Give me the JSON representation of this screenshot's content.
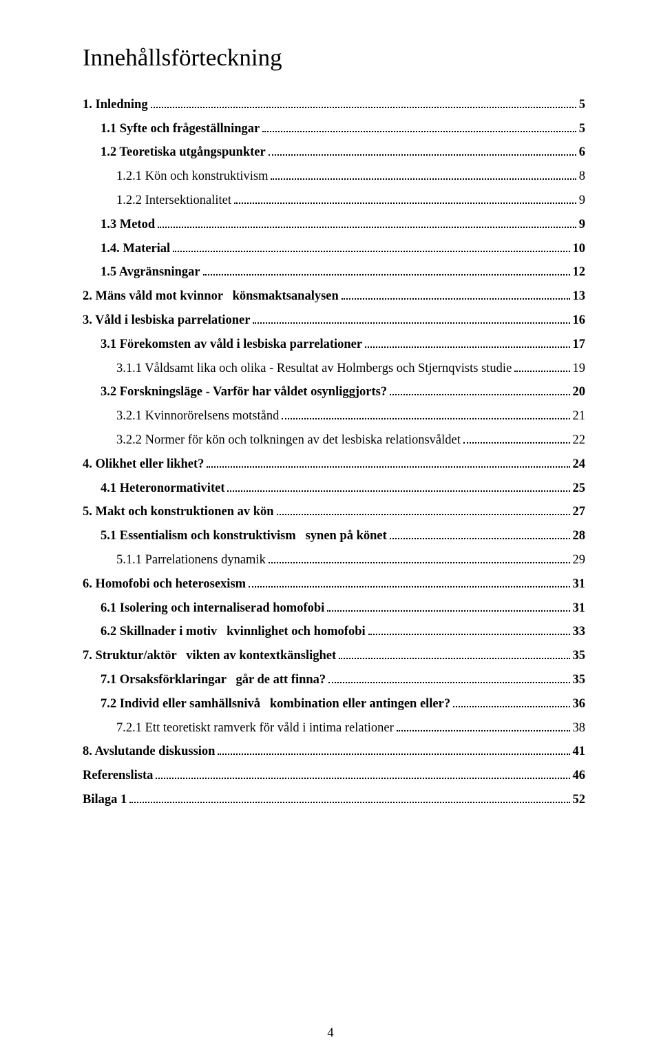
{
  "title": "Innehållsförteckning",
  "page_number": "4",
  "entries": [
    {
      "label": "1. Inledning",
      "page": "5",
      "bold": true,
      "indent": 0
    },
    {
      "label": "1.1 Syfte och frågeställningar",
      "page": "5",
      "bold": true,
      "indent": 1
    },
    {
      "label": "1.2 Teoretiska utgångspunkter",
      "page": "6",
      "bold": true,
      "indent": 1
    },
    {
      "label": "1.2.1 Kön och konstruktivism",
      "page": "8",
      "bold": false,
      "indent": 2
    },
    {
      "label": "1.2.2 Intersektionalitet",
      "page": "9",
      "bold": false,
      "indent": 2
    },
    {
      "label": "1.3 Metod",
      "page": "9",
      "bold": true,
      "indent": 1
    },
    {
      "label": "1.4. Material",
      "page": "10",
      "bold": true,
      "indent": 1
    },
    {
      "label": "1.5 Avgränsningar",
      "page": "12",
      "bold": true,
      "indent": 1
    },
    {
      "label": "2. Mäns våld mot kvinnor   könsmaktsanalysen",
      "page": "13",
      "bold": true,
      "indent": 0
    },
    {
      "label": "3. Våld i lesbiska parrelationer",
      "page": "16",
      "bold": true,
      "indent": 0
    },
    {
      "label": "3.1 Förekomsten av våld i lesbiska parrelationer",
      "page": "17",
      "bold": true,
      "indent": 1
    },
    {
      "label": "3.1.1 Våldsamt lika och olika - Resultat av Holmbergs och Stjernqvists studie",
      "page": "19",
      "bold": false,
      "indent": 2
    },
    {
      "label": "3.2 Forskningsläge - Varför har våldet osynliggjorts?",
      "page": "20",
      "bold": true,
      "indent": 1
    },
    {
      "label": "3.2.1 Kvinnorörelsens motstånd",
      "page": "21",
      "bold": false,
      "indent": 2
    },
    {
      "label": "3.2.2 Normer för kön och tolkningen av det lesbiska relationsvåldet",
      "page": "22",
      "bold": false,
      "indent": 2
    },
    {
      "label": "4. Olikhet eller likhet?",
      "page": "24",
      "bold": true,
      "indent": 0
    },
    {
      "label": "4.1 Heteronormativitet",
      "page": "25",
      "bold": true,
      "indent": 1
    },
    {
      "label": "5. Makt och konstruktionen av kön",
      "page": "27",
      "bold": true,
      "indent": 0
    },
    {
      "label": "5.1 Essentialism och konstruktivism   synen på könet",
      "page": "28",
      "bold": true,
      "indent": 1
    },
    {
      "label": "5.1.1 Parrelationens dynamik",
      "page": "29",
      "bold": false,
      "indent": 2
    },
    {
      "label": "6. Homofobi och heterosexism",
      "page": "31",
      "bold": true,
      "indent": 0
    },
    {
      "label": "6.1 Isolering och internaliserad homofobi",
      "page": "31",
      "bold": true,
      "indent": 1
    },
    {
      "label": "6.2 Skillnader i motiv   kvinnlighet och homofobi",
      "page": "33",
      "bold": true,
      "indent": 1
    },
    {
      "label": "7. Struktur/aktör   vikten av kontextkänslighet",
      "page": "35",
      "bold": true,
      "indent": 0
    },
    {
      "label": "7.1 Orsaksförklaringar   går de att finna?",
      "page": "35",
      "bold": true,
      "indent": 1
    },
    {
      "label": "7.2 Individ eller samhällsnivå   kombination eller antingen eller?",
      "page": "36",
      "bold": true,
      "indent": 1
    },
    {
      "label": "7.2.1 Ett teoretiskt ramverk för våld i intima relationer",
      "page": "38",
      "bold": false,
      "indent": 2
    },
    {
      "label": "8. Avslutande diskussion",
      "page": "41",
      "bold": true,
      "indent": 0
    },
    {
      "label": "Referenslista",
      "page": "46",
      "bold": true,
      "indent": 0
    },
    {
      "label": "Bilaga 1",
      "page": "52",
      "bold": true,
      "indent": 0
    }
  ]
}
